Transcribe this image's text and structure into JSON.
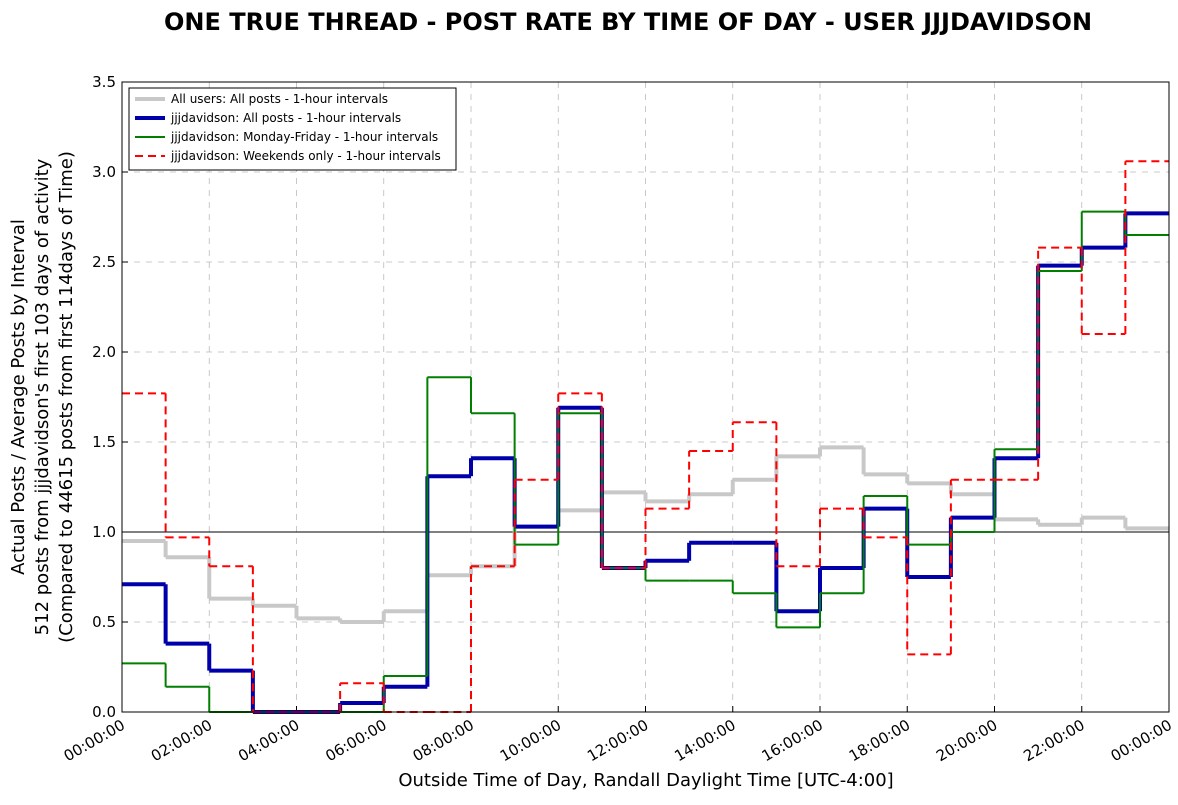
{
  "chart_data": {
    "type": "step",
    "title": "ONE TRUE THREAD - POST RATE BY TIME OF DAY - USER JJJDAVIDSON",
    "xlabel": "Outside Time of Day, Randall Daylight Time [UTC-4:00]",
    "ylabel": [
      "Actual Posts / Average Posts by Interval",
      "512 posts from jjjdavidson's first 103 days of activity",
      "(Compared to 44615 posts from first 114days of Time)"
    ],
    "x": [
      0,
      1,
      2,
      3,
      4,
      5,
      6,
      7,
      8,
      9,
      10,
      11,
      12,
      13,
      14,
      15,
      16,
      17,
      18,
      19,
      20,
      21,
      22,
      23
    ],
    "xlim": [
      0,
      24
    ],
    "xticks": [
      {
        "value": 0,
        "label": "00:00:00"
      },
      {
        "value": 2,
        "label": "02:00:00"
      },
      {
        "value": 4,
        "label": "04:00:00"
      },
      {
        "value": 6,
        "label": "06:00:00"
      },
      {
        "value": 8,
        "label": "08:00:00"
      },
      {
        "value": 10,
        "label": "10:00:00"
      },
      {
        "value": 12,
        "label": "12:00:00"
      },
      {
        "value": 14,
        "label": "14:00:00"
      },
      {
        "value": 16,
        "label": "16:00:00"
      },
      {
        "value": 18,
        "label": "18:00:00"
      },
      {
        "value": 20,
        "label": "20:00:00"
      },
      {
        "value": 22,
        "label": "22:00:00"
      },
      {
        "value": 24,
        "label": "00:00:00"
      }
    ],
    "ylim": [
      0,
      3.5
    ],
    "yticks": [
      {
        "value": 0,
        "label": "0.0"
      },
      0.5,
      {
        "value": 1,
        "label": "1.0"
      },
      1.5,
      {
        "value": 2,
        "label": "2.0"
      },
      2.5,
      {
        "value": 3,
        "label": "3.0"
      },
      3.5
    ],
    "hline": 1,
    "grid": true,
    "legend": "upper left",
    "series": [
      {
        "name": "All users: All posts - 1-hour intervals",
        "color": "#c8c8c8",
        "width": 4,
        "dashed": false,
        "values": [
          0.95,
          0.86,
          0.63,
          0.59,
          0.52,
          0.5,
          0.56,
          0.76,
          0.81,
          1.03,
          1.12,
          1.22,
          1.17,
          1.21,
          1.29,
          1.42,
          1.47,
          1.32,
          1.27,
          1.21,
          1.07,
          1.04,
          1.08,
          1.02
        ]
      },
      {
        "name": "jjjdavidson: All posts - 1-hour intervals",
        "color": "#0000aa",
        "width": 4,
        "dashed": false,
        "values": [
          0.71,
          0.38,
          0.23,
          0,
          0,
          0.05,
          0.14,
          1.31,
          1.41,
          1.03,
          1.69,
          0.8,
          0.84,
          0.94,
          0.94,
          0.56,
          0.8,
          1.13,
          0.75,
          1.08,
          1.41,
          2.48,
          2.58,
          2.77
        ]
      },
      {
        "name": "jjjdavidson: Monday-Friday - 1-hour intervals",
        "color": "#007f00",
        "width": 2,
        "dashed": false,
        "values": [
          0.27,
          0.14,
          0,
          0,
          0,
          0,
          0.2,
          1.86,
          1.66,
          0.93,
          1.66,
          0.8,
          0.73,
          0.73,
          0.66,
          0.47,
          0.66,
          1.2,
          0.93,
          1.0,
          1.46,
          2.45,
          2.78,
          2.65
        ]
      },
      {
        "name": "jjjdavidson: Weekends only - 1-hour intervals",
        "color": "#ff0000",
        "width": 2,
        "dashed": true,
        "values": [
          1.77,
          0.97,
          0.81,
          0,
          0,
          0.16,
          0,
          0,
          0.81,
          1.29,
          1.77,
          0.8,
          1.13,
          1.45,
          1.61,
          0.81,
          1.13,
          0.97,
          0.32,
          1.29,
          1.29,
          2.58,
          2.1,
          3.06
        ]
      }
    ]
  }
}
